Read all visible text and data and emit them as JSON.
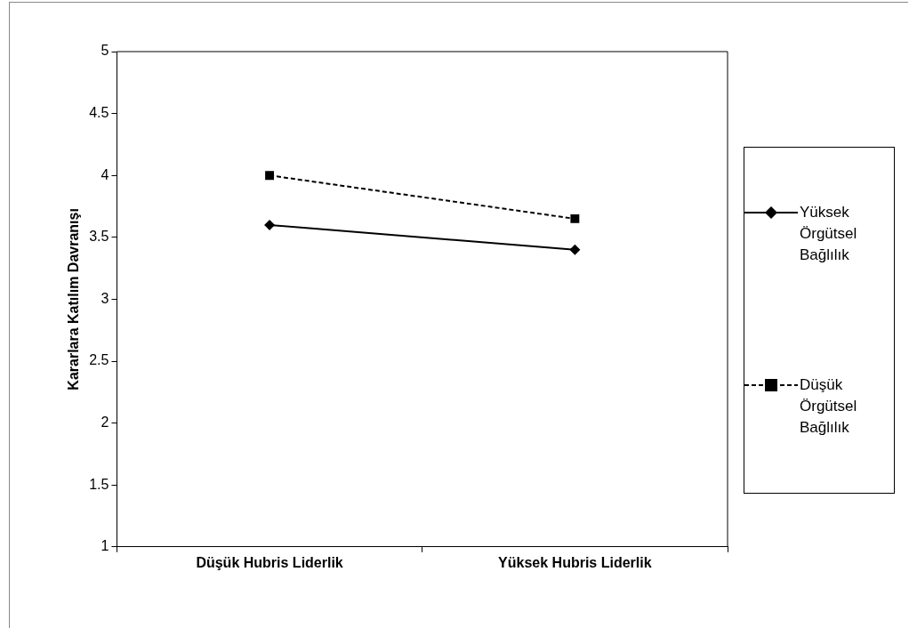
{
  "chart_data": {
    "type": "line",
    "ylabel": "Kararlara Katılım Davranışı",
    "categories": [
      "Düşük Hubris Liderlik",
      "Yüksek Hubris Liderlik"
    ],
    "series": [
      {
        "name": "Yüksek Örgütsel Bağlılık",
        "color": "#000000",
        "values": [
          3.6,
          3.4
        ],
        "marker": "diamond",
        "line_style": "solid"
      },
      {
        "name": "Düşük Örgütsel Bağlılık",
        "color": "#000000",
        "values": [
          4.0,
          3.65
        ],
        "marker": "square",
        "line_style": "dashed"
      }
    ],
    "ylim": [
      1,
      5
    ],
    "yticks": [
      1,
      1.5,
      2,
      2.5,
      3,
      3.5,
      4,
      4.5,
      5
    ],
    "grid": false,
    "legend": "right"
  }
}
